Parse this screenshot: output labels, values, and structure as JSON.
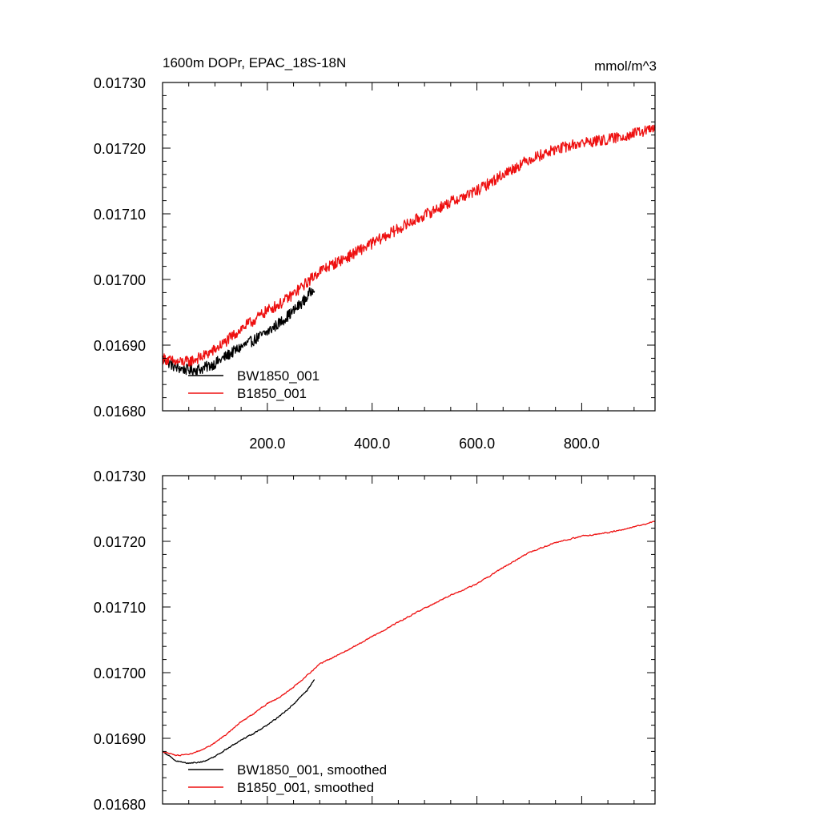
{
  "colors": {
    "black_series": "#000000",
    "red_series": "#ee1111",
    "axis": "#000000"
  },
  "chart_data": [
    {
      "type": "line",
      "title": "1600m DOPr, EPAC_18S-18N",
      "units": "mmol/m^3",
      "xlim": [
        0,
        940
      ],
      "ylim": [
        0.0168,
        0.0173
      ],
      "x_ticks": [
        200,
        400,
        600,
        800
      ],
      "x_tick_labels": [
        "200.0",
        "400.0",
        "600.0",
        "800.0"
      ],
      "y_ticks": [
        0.0168,
        0.0169,
        0.017,
        0.0171,
        0.0172,
        0.0173
      ],
      "y_tick_labels": [
        "0.01680",
        "0.01690",
        "0.01700",
        "0.01710",
        "0.01720",
        "0.01730"
      ],
      "noise": 8.5e-06,
      "series": [
        {
          "name": "BW1850_001",
          "color": "#000000",
          "x": [
            0,
            25,
            50,
            75,
            100,
            125,
            150,
            175,
            200,
            225,
            250,
            275,
            290
          ],
          "y": [
            0.01688,
            0.016866,
            0.016862,
            0.016864,
            0.016872,
            0.016885,
            0.016897,
            0.016908,
            0.01692,
            0.016935,
            0.016952,
            0.016972,
            0.01699
          ]
        },
        {
          "name": "B1850_001",
          "color": "#ee1111",
          "x": [
            0,
            25,
            50,
            75,
            100,
            125,
            150,
            175,
            200,
            225,
            250,
            275,
            300,
            350,
            400,
            450,
            500,
            550,
            600,
            650,
            700,
            750,
            800,
            850,
            900,
            940
          ],
          "y": [
            0.01688,
            0.016874,
            0.016875,
            0.016882,
            0.016893,
            0.016908,
            0.016925,
            0.016938,
            0.016953,
            0.016963,
            0.016978,
            0.016995,
            0.017013,
            0.017033,
            0.017055,
            0.017077,
            0.017098,
            0.017118,
            0.017135,
            0.01716,
            0.017183,
            0.017198,
            0.017208,
            0.017213,
            0.017222,
            0.01723
          ]
        }
      ],
      "legend": {
        "position": "bottom-left",
        "entries": [
          "BW1850_001",
          "B1850_001"
        ]
      }
    },
    {
      "type": "line",
      "title": "",
      "xlim": [
        0,
        940
      ],
      "ylim": [
        0.0168,
        0.0173
      ],
      "x_ticks": [
        200,
        400,
        600,
        800
      ],
      "x_tick_labels": [],
      "y_ticks": [
        0.0168,
        0.0169,
        0.017,
        0.0171,
        0.0172,
        0.0173
      ],
      "y_tick_labels": [
        "0.01680",
        "0.01690",
        "0.01700",
        "0.01710",
        "0.01720",
        "0.01730"
      ],
      "noise": 1.6e-06,
      "series": [
        {
          "name": "BW1850_001, smoothed",
          "color": "#000000",
          "x": [
            0,
            25,
            50,
            75,
            100,
            125,
            150,
            175,
            200,
            225,
            250,
            275,
            290
          ],
          "y": [
            0.01688,
            0.016866,
            0.016862,
            0.016864,
            0.016872,
            0.016885,
            0.016897,
            0.016908,
            0.01692,
            0.016935,
            0.016952,
            0.016972,
            0.01699
          ]
        },
        {
          "name": "B1850_001, smoothed",
          "color": "#ee1111",
          "x": [
            0,
            25,
            50,
            75,
            100,
            125,
            150,
            175,
            200,
            225,
            250,
            275,
            300,
            350,
            400,
            450,
            500,
            550,
            600,
            650,
            700,
            750,
            800,
            850,
            900,
            940
          ],
          "y": [
            0.01688,
            0.016874,
            0.016875,
            0.016882,
            0.016893,
            0.016908,
            0.016925,
            0.016938,
            0.016953,
            0.016963,
            0.016978,
            0.016995,
            0.017013,
            0.017033,
            0.017055,
            0.017077,
            0.017098,
            0.017118,
            0.017135,
            0.01716,
            0.017183,
            0.017198,
            0.017208,
            0.017213,
            0.017222,
            0.01723
          ]
        }
      ],
      "legend": {
        "position": "bottom-left",
        "entries": [
          "BW1850_001, smoothed",
          "B1850_001, smoothed"
        ]
      }
    }
  ]
}
